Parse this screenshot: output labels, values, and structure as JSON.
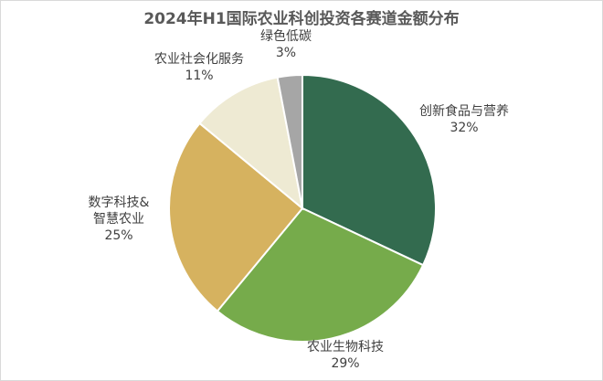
{
  "chart_data": {
    "type": "pie",
    "title": "2024年H1国际农业科创投资各赛道金额分布",
    "slices": [
      {
        "label": "创新食品与营养",
        "value": 32,
        "value_label": "32%",
        "color": "#336b4f"
      },
      {
        "label": "农业生物科技",
        "value": 29,
        "value_label": "29%",
        "color": "#76ab4b"
      },
      {
        "label": "数字科技&智慧农业",
        "label_lines": [
          "数字科技&",
          "智慧农业"
        ],
        "value": 25,
        "value_label": "25%",
        "color": "#d6b25f"
      },
      {
        "label": "农业社会化服务",
        "value": 11,
        "value_label": "11%",
        "color": "#eeead3"
      },
      {
        "label": "绿色低碳",
        "value": 3,
        "value_label": "3%",
        "color": "#a6a6a6"
      }
    ],
    "legend": "none",
    "data_labels": "outside"
  }
}
